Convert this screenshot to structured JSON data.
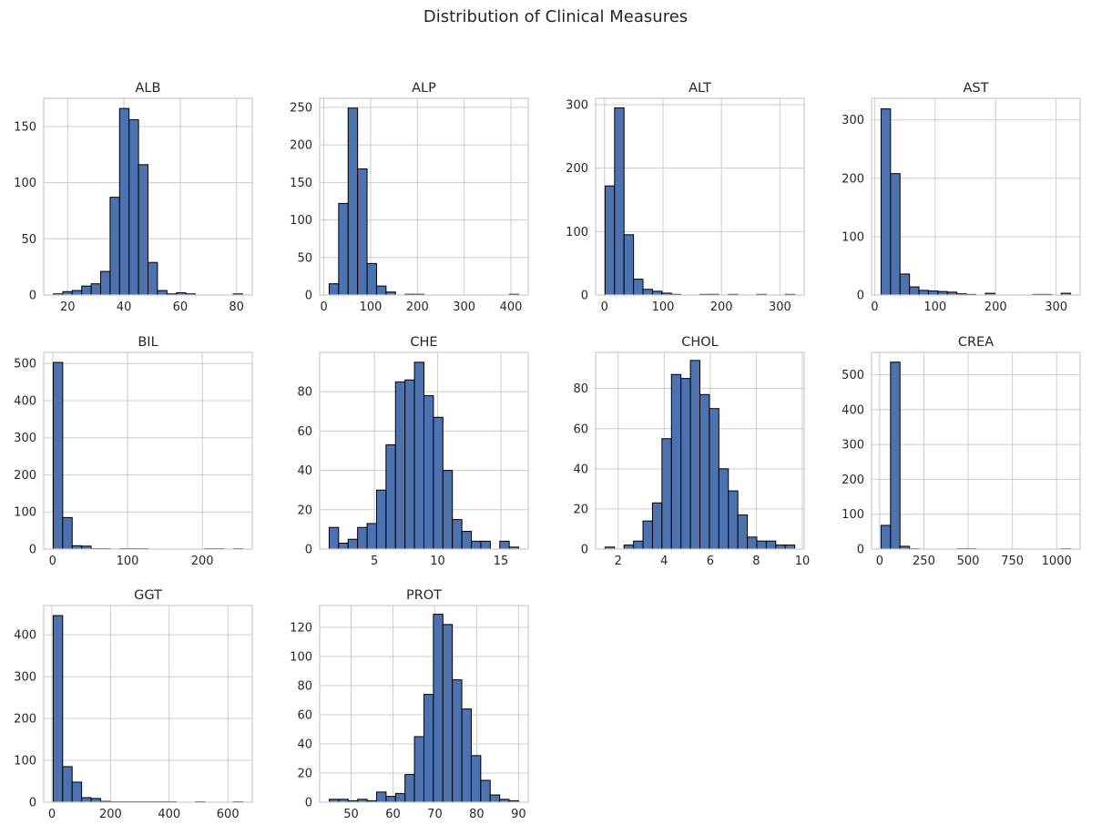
{
  "title": "Distribution of Clinical Measures",
  "colors": {
    "bar_fill": "#4c72b0",
    "bar_edge": "#000000",
    "grid": "#cccccc",
    "background": "#ffffff"
  },
  "chart_data": [
    {
      "type": "bar",
      "title": "ALB",
      "bins": 20,
      "x_range": [
        14.9,
        82.2
      ],
      "xlim": [
        11.5,
        85.6
      ],
      "ylim": [
        0,
        175
      ],
      "xticks": [
        20,
        40,
        60,
        80
      ],
      "yticks": [
        0,
        50,
        100,
        150
      ],
      "counts": [
        1,
        3,
        4,
        8,
        10,
        21,
        87,
        166,
        156,
        116,
        29,
        4,
        1,
        2,
        1,
        0,
        0,
        0,
        0,
        1
      ]
    },
    {
      "type": "bar",
      "title": "ALP",
      "bins": 20,
      "x_range": [
        11.3,
        416.6
      ],
      "xlim": [
        -9,
        436.9
      ],
      "ylim": [
        0,
        262
      ],
      "xticks": [
        0,
        100,
        200,
        300,
        400
      ],
      "yticks": [
        0,
        50,
        100,
        150,
        200,
        250
      ],
      "counts": [
        15,
        122,
        249,
        168,
        42,
        12,
        4,
        0,
        1,
        1,
        0,
        0,
        0,
        0,
        0,
        0,
        0,
        0,
        0,
        1
      ]
    },
    {
      "type": "bar",
      "title": "ALT",
      "bins": 20,
      "x_range": [
        0.9,
        325.3
      ],
      "xlim": [
        -15.3,
        341.5
      ],
      "ylim": [
        0,
        310
      ],
      "xticks": [
        0,
        100,
        200,
        300
      ],
      "yticks": [
        0,
        100,
        200,
        300
      ],
      "counts": [
        172,
        295,
        95,
        25,
        9,
        6,
        3,
        1,
        0,
        0,
        1,
        1,
        0,
        1,
        0,
        0,
        1,
        0,
        0,
        1
      ]
    },
    {
      "type": "bar",
      "title": "AST",
      "bins": 20,
      "x_range": [
        10.6,
        324
      ],
      "xlim": [
        -5.1,
        339.7
      ],
      "ylim": [
        0,
        337
      ],
      "xticks": [
        0,
        100,
        200,
        300
      ],
      "yticks": [
        0,
        100,
        200,
        300
      ],
      "counts": [
        319,
        208,
        36,
        14,
        8,
        7,
        6,
        5,
        2,
        1,
        0,
        3,
        0,
        0,
        0,
        0,
        1,
        1,
        0,
        3
      ]
    },
    {
      "type": "bar",
      "title": "BIL",
      "bins": 20,
      "x_range": [
        0.8,
        254
      ],
      "xlim": [
        -11.9,
        266.7
      ],
      "ylim": [
        0,
        530
      ],
      "xticks": [
        0,
        100,
        200
      ],
      "yticks": [
        0,
        100,
        200,
        300,
        400,
        500
      ],
      "counts": [
        503,
        85,
        9,
        8,
        1,
        1,
        0,
        1,
        1,
        1,
        0,
        0,
        0,
        0,
        0,
        0,
        1,
        1,
        0,
        1
      ]
    },
    {
      "type": "bar",
      "title": "CHE",
      "bins": 20,
      "x_range": [
        1.42,
        16.41
      ],
      "xlim": [
        0.67,
        17.16
      ],
      "ylim": [
        0,
        100
      ],
      "xticks": [
        5,
        10,
        15
      ],
      "yticks": [
        0,
        20,
        40,
        60,
        80
      ],
      "counts": [
        11,
        3,
        5,
        11,
        13,
        30,
        53,
        85,
        86,
        95,
        78,
        67,
        40,
        15,
        9,
        4,
        4,
        0,
        4,
        1
      ]
    },
    {
      "type": "bar",
      "title": "CHOL",
      "bins": 20,
      "x_range": [
        1.43,
        9.67
      ],
      "xlim": [
        1.02,
        10.08
      ],
      "ylim": [
        0,
        98
      ],
      "xticks": [
        2,
        4,
        6,
        8,
        10
      ],
      "yticks": [
        0,
        20,
        40,
        60,
        80
      ],
      "counts": [
        1,
        0,
        2,
        4,
        14,
        23,
        55,
        87,
        85,
        94,
        77,
        70,
        40,
        29,
        17,
        6,
        4,
        4,
        2,
        2
      ]
    },
    {
      "type": "bar",
      "title": "CREA",
      "bins": 20,
      "x_range": [
        8,
        1079.1
      ],
      "xlim": [
        -45.6,
        1132.7
      ],
      "ylim": [
        0,
        564
      ],
      "xticks": [
        0,
        250,
        500,
        750,
        1000
      ],
      "yticks": [
        0,
        100,
        200,
        300,
        400,
        500
      ],
      "counts": [
        68,
        536,
        8,
        1,
        0,
        0,
        0,
        0,
        1,
        1,
        0,
        0,
        0,
        0,
        0,
        0,
        0,
        0,
        0,
        1
      ]
    },
    {
      "type": "bar",
      "title": "GGT",
      "bins": 20,
      "x_range": [
        4.5,
        650.9
      ],
      "xlim": [
        -27.8,
        683.2
      ],
      "ylim": [
        0,
        470
      ],
      "xticks": [
        0,
        200,
        400,
        600
      ],
      "yticks": [
        0,
        100,
        200,
        300,
        400
      ],
      "counts": [
        446,
        85,
        48,
        11,
        9,
        2,
        1,
        1,
        1,
        1,
        1,
        1,
        1,
        0,
        0,
        1,
        0,
        0,
        0,
        1
      ]
    },
    {
      "type": "bar",
      "title": "PROT",
      "bins": 20,
      "x_range": [
        44.8,
        90
      ],
      "xlim": [
        42.5,
        92.3
      ],
      "ylim": [
        0,
        135
      ],
      "xticks": [
        50,
        60,
        70,
        80,
        90
      ],
      "yticks": [
        0,
        20,
        40,
        60,
        80,
        100,
        120
      ],
      "counts": [
        2,
        2,
        1,
        2,
        1,
        7,
        4,
        6,
        19,
        45,
        74,
        129,
        122,
        84,
        64,
        32,
        15,
        5,
        2,
        1
      ]
    }
  ]
}
